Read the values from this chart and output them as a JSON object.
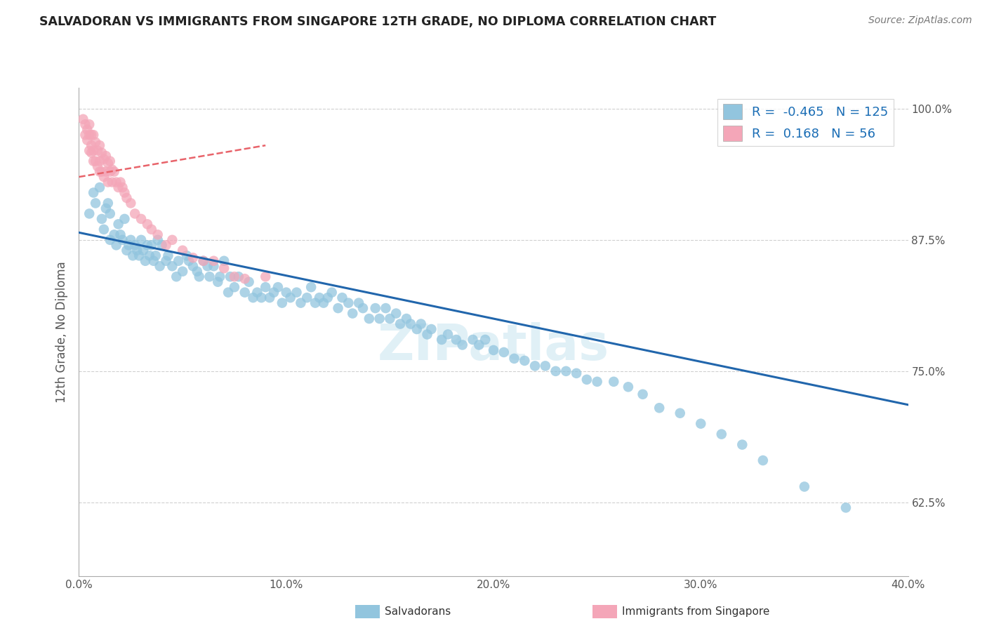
{
  "title": "SALVADORAN VS IMMIGRANTS FROM SINGAPORE 12TH GRADE, NO DIPLOMA CORRELATION CHART",
  "source": "Source: ZipAtlas.com",
  "ylabel": "12th Grade, No Diploma",
  "legend_label1": "Salvadorans",
  "legend_label2": "Immigrants from Singapore",
  "r1": -0.465,
  "n1": 125,
  "r2": 0.168,
  "n2": 56,
  "color1": "#92c5de",
  "color2": "#f4a6b8",
  "trendline1_color": "#2166ac",
  "trendline2_color": "#e8636a",
  "xlim": [
    0.0,
    0.4
  ],
  "ylim": [
    0.555,
    1.02
  ],
  "xticks": [
    0.0,
    0.1,
    0.2,
    0.3,
    0.4
  ],
  "xtick_labels": [
    "0.0%",
    "10.0%",
    "20.0%",
    "30.0%",
    "40.0%"
  ],
  "yticks": [
    0.625,
    0.75,
    0.875,
    1.0
  ],
  "ytick_labels": [
    "62.5%",
    "75.0%",
    "87.5%",
    "100.0%"
  ],
  "watermark": "ZIPatlas",
  "trendline1_x0": 0.0,
  "trendline1_y0": 0.882,
  "trendline1_x1": 0.4,
  "trendline1_y1": 0.718,
  "trendline2_x0": 0.0,
  "trendline2_y0": 0.935,
  "trendline2_x1": 0.09,
  "trendline2_y1": 0.965,
  "blue_x": [
    0.005,
    0.007,
    0.008,
    0.01,
    0.011,
    0.012,
    0.013,
    0.014,
    0.015,
    0.015,
    0.017,
    0.018,
    0.019,
    0.02,
    0.021,
    0.022,
    0.023,
    0.024,
    0.025,
    0.026,
    0.027,
    0.028,
    0.029,
    0.03,
    0.031,
    0.032,
    0.033,
    0.034,
    0.035,
    0.036,
    0.037,
    0.038,
    0.039,
    0.04,
    0.042,
    0.043,
    0.045,
    0.047,
    0.048,
    0.05,
    0.052,
    0.053,
    0.055,
    0.057,
    0.058,
    0.06,
    0.062,
    0.063,
    0.065,
    0.067,
    0.068,
    0.07,
    0.072,
    0.073,
    0.075,
    0.077,
    0.08,
    0.082,
    0.084,
    0.086,
    0.088,
    0.09,
    0.092,
    0.094,
    0.096,
    0.098,
    0.1,
    0.102,
    0.105,
    0.107,
    0.11,
    0.112,
    0.114,
    0.116,
    0.118,
    0.12,
    0.122,
    0.125,
    0.127,
    0.13,
    0.132,
    0.135,
    0.137,
    0.14,
    0.143,
    0.145,
    0.148,
    0.15,
    0.153,
    0.155,
    0.158,
    0.16,
    0.163,
    0.165,
    0.168,
    0.17,
    0.175,
    0.178,
    0.182,
    0.185,
    0.19,
    0.193,
    0.196,
    0.2,
    0.205,
    0.21,
    0.215,
    0.22,
    0.225,
    0.23,
    0.235,
    0.24,
    0.245,
    0.25,
    0.258,
    0.265,
    0.272,
    0.28,
    0.29,
    0.3,
    0.31,
    0.32,
    0.33,
    0.35,
    0.37
  ],
  "blue_y": [
    0.9,
    0.92,
    0.91,
    0.925,
    0.895,
    0.885,
    0.905,
    0.91,
    0.9,
    0.875,
    0.88,
    0.87,
    0.89,
    0.88,
    0.875,
    0.895,
    0.865,
    0.87,
    0.875,
    0.86,
    0.87,
    0.865,
    0.86,
    0.875,
    0.865,
    0.855,
    0.87,
    0.86,
    0.87,
    0.855,
    0.86,
    0.875,
    0.85,
    0.87,
    0.855,
    0.86,
    0.85,
    0.84,
    0.855,
    0.845,
    0.86,
    0.855,
    0.85,
    0.845,
    0.84,
    0.855,
    0.85,
    0.84,
    0.85,
    0.835,
    0.84,
    0.855,
    0.825,
    0.84,
    0.83,
    0.84,
    0.825,
    0.835,
    0.82,
    0.825,
    0.82,
    0.83,
    0.82,
    0.825,
    0.83,
    0.815,
    0.825,
    0.82,
    0.825,
    0.815,
    0.82,
    0.83,
    0.815,
    0.82,
    0.815,
    0.82,
    0.825,
    0.81,
    0.82,
    0.815,
    0.805,
    0.815,
    0.81,
    0.8,
    0.81,
    0.8,
    0.81,
    0.8,
    0.805,
    0.795,
    0.8,
    0.795,
    0.79,
    0.795,
    0.785,
    0.79,
    0.78,
    0.785,
    0.78,
    0.775,
    0.78,
    0.775,
    0.78,
    0.77,
    0.768,
    0.762,
    0.76,
    0.755,
    0.755,
    0.75,
    0.75,
    0.748,
    0.742,
    0.74,
    0.74,
    0.735,
    0.728,
    0.715,
    0.71,
    0.7,
    0.69,
    0.68,
    0.665,
    0.64,
    0.62
  ],
  "pink_x": [
    0.002,
    0.003,
    0.003,
    0.004,
    0.004,
    0.005,
    0.005,
    0.005,
    0.006,
    0.006,
    0.006,
    0.007,
    0.007,
    0.007,
    0.008,
    0.008,
    0.009,
    0.009,
    0.01,
    0.01,
    0.01,
    0.011,
    0.011,
    0.012,
    0.012,
    0.013,
    0.013,
    0.014,
    0.014,
    0.015,
    0.015,
    0.016,
    0.016,
    0.017,
    0.018,
    0.019,
    0.02,
    0.021,
    0.022,
    0.023,
    0.025,
    0.027,
    0.03,
    0.033,
    0.035,
    0.038,
    0.042,
    0.045,
    0.05,
    0.055,
    0.06,
    0.065,
    0.07,
    0.075,
    0.08,
    0.09
  ],
  "pink_y": [
    0.99,
    0.985,
    0.975,
    0.98,
    0.97,
    0.985,
    0.975,
    0.96,
    0.975,
    0.965,
    0.958,
    0.975,
    0.96,
    0.95,
    0.968,
    0.95,
    0.96,
    0.945,
    0.965,
    0.95,
    0.94,
    0.958,
    0.94,
    0.952,
    0.935,
    0.955,
    0.94,
    0.948,
    0.93,
    0.95,
    0.94,
    0.942,
    0.93,
    0.94,
    0.93,
    0.925,
    0.93,
    0.925,
    0.92,
    0.915,
    0.91,
    0.9,
    0.895,
    0.89,
    0.885,
    0.88,
    0.87,
    0.875,
    0.865,
    0.858,
    0.855,
    0.855,
    0.848,
    0.84,
    0.838,
    0.84
  ]
}
